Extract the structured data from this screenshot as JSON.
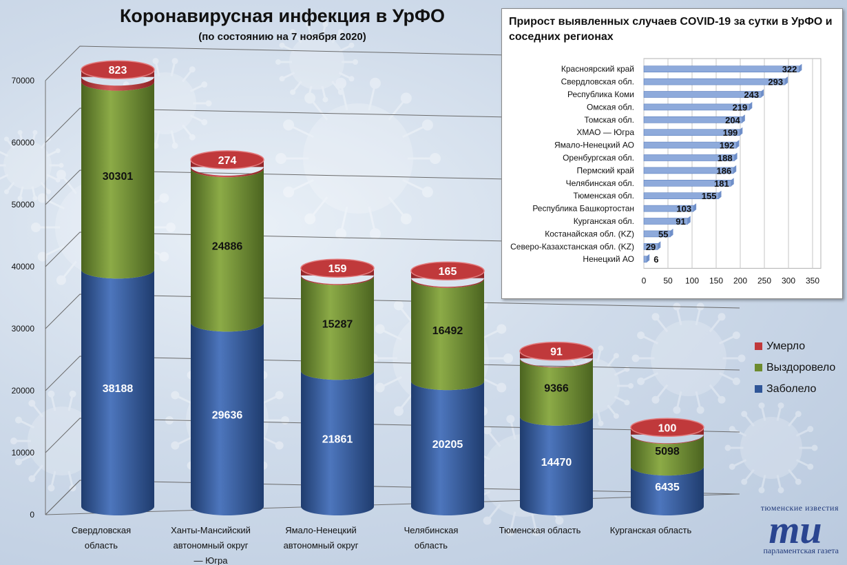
{
  "header": {
    "title": "Коронавирусная инфекция в УрФО",
    "subtitle": "(по состоянию на 7 ноября 2020)"
  },
  "chart_data": [
    {
      "type": "bar",
      "stacked": true,
      "categories": [
        [
          "Свердловская",
          "область"
        ],
        [
          "Ханты-Мансийский",
          "автономный округ",
          "— Югра"
        ],
        [
          "Ямало-Ненецкий",
          "автономный округ"
        ],
        [
          "Челябинская",
          "область"
        ],
        [
          "Тюменская область"
        ],
        [
          "Курганская область"
        ]
      ],
      "series": [
        {
          "name": "Заболело",
          "color": "#2f5597",
          "values": [
            38188,
            29636,
            21861,
            20205,
            14470,
            6435
          ]
        },
        {
          "name": "Выздоровело",
          "color": "#6d8b2e",
          "values": [
            30301,
            24886,
            15287,
            16492,
            9366,
            5098
          ]
        },
        {
          "name": "Умерло",
          "color": "#c0393b",
          "values": [
            823,
            274,
            159,
            165,
            91,
            100
          ]
        }
      ],
      "ylim": [
        0,
        70000
      ],
      "yticks": [
        0,
        10000,
        20000,
        30000,
        40000,
        50000,
        60000,
        70000
      ],
      "grid": true,
      "legend": "right"
    },
    {
      "type": "bar",
      "orientation": "horizontal",
      "title": "Прирост выявленных случаев COVID-19 за сутки в УрФО и соседних регионах",
      "categories": [
        "Красноярский край",
        "Свердловская обл.",
        "Республика Коми",
        "Омская обл.",
        "Томская обл.",
        "ХМАО — Югра",
        "Ямало-Ненецкий АО",
        "Оренбургская обл.",
        "Пермский край",
        "Челябинская обл.",
        "Тюменская обл.",
        "Республика Башкортостан",
        "Курганская обл.",
        "Костанайская обл. (KZ)",
        "Северо-Казахстанская обл. (KZ)",
        "Ненецкий АО"
      ],
      "values": [
        322,
        293,
        243,
        219,
        204,
        199,
        192,
        188,
        186,
        181,
        155,
        103,
        91,
        55,
        29,
        6
      ],
      "color": "#8eaadb",
      "xlim": [
        0,
        350
      ],
      "xticks": [
        0,
        50,
        100,
        150,
        200,
        250,
        300,
        350
      ],
      "grid": true
    }
  ],
  "logo": {
    "top": "тюменские известия",
    "big": "ти",
    "bottom": "парламентская газета"
  }
}
